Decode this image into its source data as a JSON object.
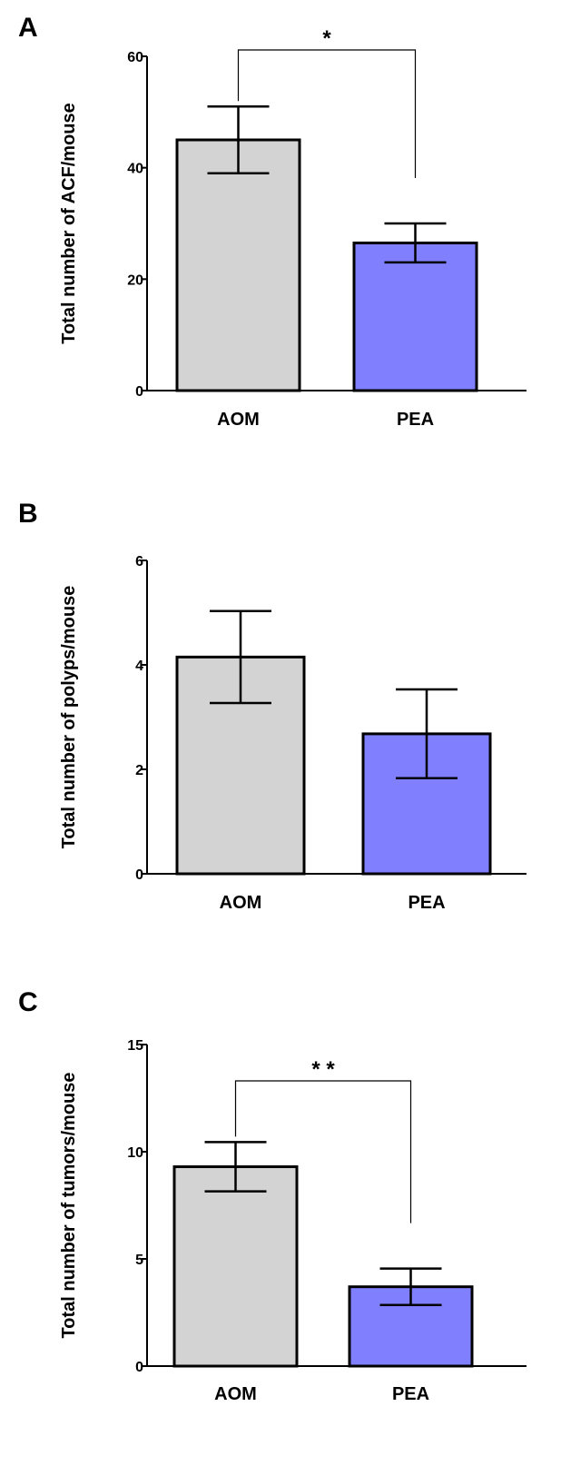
{
  "chart_data": [
    {
      "type": "bar",
      "panel_label": "A",
      "categories": [
        "AOM",
        "PEA"
      ],
      "values": [
        45,
        26.5
      ],
      "errors": [
        6,
        3.5
      ],
      "colors": [
        "#d3d3d3",
        "#8080ff"
      ],
      "ylabel": "Total number of ACF/mouse",
      "ylim": [
        0,
        60
      ],
      "yticks": [
        "0",
        "20",
        "40",
        "60"
      ],
      "significance": "*"
    },
    {
      "type": "bar",
      "panel_label": "B",
      "categories": [
        "AOM",
        "PEA"
      ],
      "values": [
        4.15,
        2.68
      ],
      "errors": [
        0.88,
        0.85
      ],
      "colors": [
        "#d3d3d3",
        "#8080ff"
      ],
      "ylabel": "Total number of polyps/mouse",
      "ylim": [
        0,
        6
      ],
      "yticks": [
        "0",
        "2",
        "4",
        "6"
      ],
      "significance": ""
    },
    {
      "type": "bar",
      "panel_label": "C",
      "categories": [
        "AOM",
        "PEA"
      ],
      "values": [
        9.3,
        3.7
      ],
      "errors": [
        1.15,
        0.85
      ],
      "colors": [
        "#d3d3d3",
        "#8080ff"
      ],
      "ylabel": "Total number of tumors/mouse",
      "ylim": [
        0,
        15
      ],
      "yticks": [
        "0",
        "5",
        "10",
        "15"
      ],
      "significance": "* *"
    }
  ]
}
